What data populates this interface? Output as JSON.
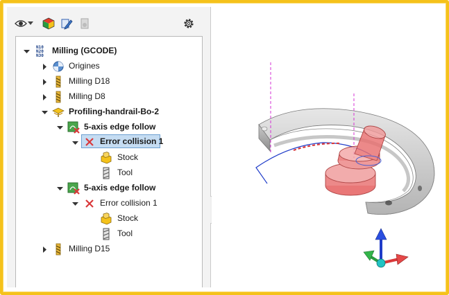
{
  "toolbar": {
    "icons": [
      "eye-icon",
      "dropdown-arrow-icon",
      "cube-color-icon",
      "edit-tool-icon",
      "settings-disabled-icon",
      "gear-icon"
    ]
  },
  "tree": {
    "root": {
      "label": "Milling (GCODE)",
      "icon": "nc-code-icon"
    },
    "items": [
      {
        "label": "Origines",
        "icon": "origin-icon"
      },
      {
        "label": "Milling D18",
        "icon": "mill-tool-icon"
      },
      {
        "label": "Milling D8",
        "icon": "mill-tool-icon"
      },
      {
        "label": "Profiling-handrail-Bo-2",
        "icon": "profiling-op-icon"
      },
      {
        "label": "5-axis edge follow",
        "icon": "toolpath-error-icon"
      },
      {
        "label": "Error collision 1",
        "icon": "error-x-icon"
      },
      {
        "label": "Stock",
        "icon": "stock-icon"
      },
      {
        "label": "Tool",
        "icon": "tool-icon"
      },
      {
        "label": "5-axis edge follow",
        "icon": "toolpath-error-icon"
      },
      {
        "label": "Error collision 1",
        "icon": "error-x-icon"
      },
      {
        "label": "Stock",
        "icon": "stock-icon"
      },
      {
        "label": "Tool",
        "icon": "tool-icon"
      },
      {
        "label": "Milling D15",
        "icon": "mill-tool-icon"
      }
    ]
  },
  "colors": {
    "frame": "#f5c21b",
    "selection": "#c5dcf2",
    "collision": "#d9383a",
    "toolpath_blue": "#1f3cc9",
    "axis_marker": "#d430d4"
  }
}
